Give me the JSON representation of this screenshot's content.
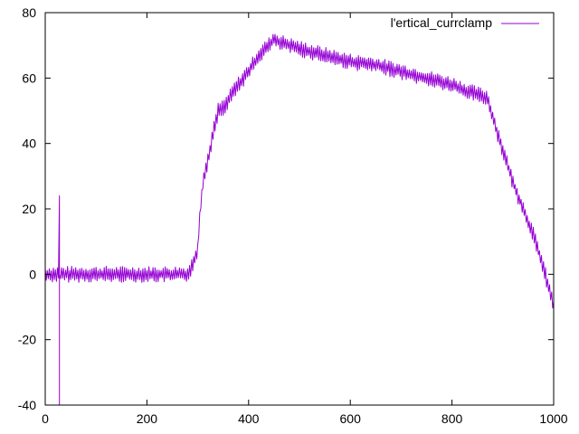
{
  "chart_data": {
    "type": "line",
    "title": "",
    "xlabel": "",
    "ylabel": "",
    "xlim": [
      0,
      1000
    ],
    "ylim": [
      -40,
      80
    ],
    "x_ticks": [
      0,
      200,
      400,
      600,
      800,
      1000
    ],
    "y_ticks": [
      -40,
      -20,
      0,
      20,
      40,
      60,
      80
    ],
    "x_tick_labels": [
      "0",
      "200",
      "400",
      "600",
      "800",
      "1000"
    ],
    "y_tick_labels": [
      "-40",
      "-20",
      "0",
      "20",
      "40",
      "60",
      "80"
    ],
    "grid": false,
    "legend_position": "top-right",
    "series": [
      {
        "name": "l'ertical_currclamp",
        "color": "#9400d3",
        "noise_amplitude": 2.5,
        "spike": {
          "x": 28,
          "min": -40,
          "max": 24
        },
        "x": [
          0,
          50,
          100,
          150,
          200,
          250,
          280,
          290,
          300,
          305,
          310,
          320,
          330,
          340,
          350,
          360,
          370,
          380,
          400,
          420,
          440,
          450,
          460,
          480,
          500,
          550,
          600,
          650,
          700,
          750,
          800,
          830,
          850,
          870,
          880,
          900,
          920,
          940,
          960,
          980,
          1000
        ],
        "y": [
          0,
          0,
          0,
          0,
          0,
          0,
          0,
          3,
          8,
          20,
          28,
          35,
          43,
          50,
          51,
          53,
          56,
          58,
          62,
          67,
          70,
          72,
          71,
          70,
          69,
          67,
          65,
          64,
          62,
          60,
          58,
          56,
          55,
          54,
          48,
          38,
          28,
          20,
          12,
          2,
          -10
        ]
      }
    ]
  }
}
